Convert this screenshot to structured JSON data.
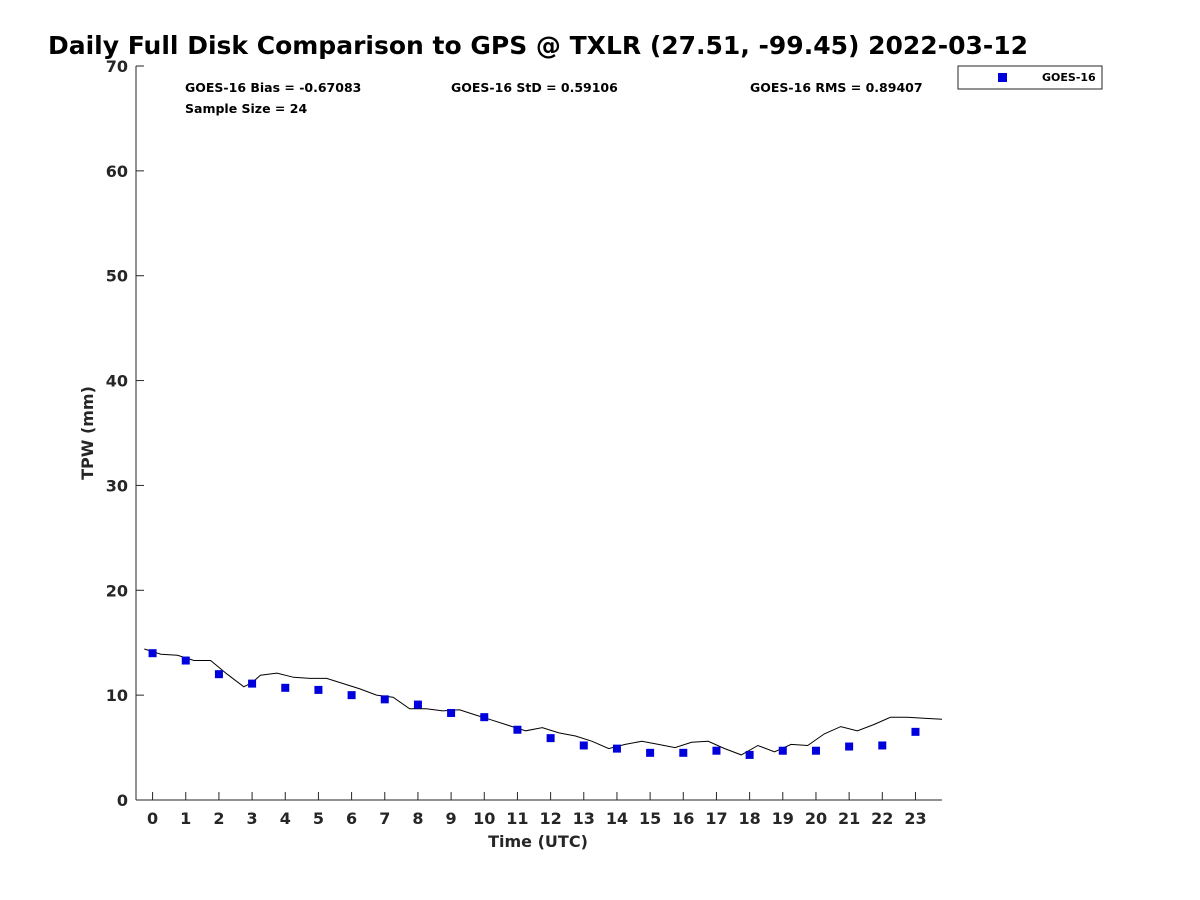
{
  "chart_data": {
    "type": "scatter",
    "title": "Daily Full Disk Comparison to GPS @ TXLR (27.51, -99.45) 2022-03-12",
    "xlabel": "Time (UTC)",
    "ylabel": "TPW (mm)",
    "xlim": [
      -0.5,
      23.8
    ],
    "ylim": [
      0,
      70
    ],
    "xticks": [
      "0",
      "1",
      "2",
      "3",
      "4",
      "5",
      "6",
      "7",
      "8",
      "9",
      "10",
      "11",
      "12",
      "13",
      "14",
      "15",
      "16",
      "17",
      "18",
      "19",
      "20",
      "21",
      "22",
      "23"
    ],
    "yticks": [
      "0",
      "10",
      "20",
      "30",
      "40",
      "50",
      "60",
      "70"
    ],
    "grid": false,
    "legend_position": "top-right (outside plot)",
    "stats": {
      "bias": "GOES-16 Bias = -0.67083",
      "std": "GOES-16 StD = 0.59106",
      "rms": "GOES-16 RMS = 0.89407",
      "sample": "Sample Size = 24"
    },
    "series": [
      {
        "name": "GOES-16",
        "kind": "marker",
        "color": "#0000dd",
        "x": [
          0,
          1,
          2,
          3,
          4,
          5,
          6,
          7,
          8,
          9,
          10,
          11,
          12,
          13,
          14,
          15,
          16,
          17,
          18,
          19,
          20,
          21,
          22,
          23
        ],
        "y": [
          14.0,
          13.3,
          12.0,
          11.1,
          10.7,
          10.5,
          10.0,
          9.6,
          9.1,
          8.3,
          7.9,
          6.7,
          5.9,
          5.2,
          4.9,
          4.5,
          4.5,
          4.7,
          4.3,
          4.7,
          4.7,
          5.1,
          5.2,
          6.5
        ]
      },
      {
        "kind": "line",
        "color": "#000000",
        "x": [
          -0.25,
          0.25,
          0.75,
          1.25,
          1.75,
          2.25,
          2.75,
          3.0,
          3.25,
          3.75,
          4.25,
          4.75,
          5.25,
          5.75,
          6.25,
          6.75,
          7.0,
          7.25,
          7.75,
          8.25,
          8.75,
          9.25,
          9.75,
          10.25,
          10.75,
          11.25,
          11.75,
          12.25,
          12.75,
          13.25,
          13.75,
          14.25,
          14.75,
          15.25,
          15.75,
          16.25,
          16.75,
          17.25,
          17.75,
          18.25,
          18.75,
          19.25,
          19.75,
          20.25,
          20.75,
          21.25,
          21.75,
          22.25,
          22.75,
          23.25,
          23.8
        ],
        "y": [
          14.4,
          13.9,
          13.8,
          13.3,
          13.3,
          12.0,
          10.8,
          11.2,
          11.9,
          12.1,
          11.7,
          11.6,
          11.6,
          11.1,
          10.6,
          10.0,
          9.9,
          9.8,
          8.7,
          8.7,
          8.5,
          8.6,
          8.1,
          7.6,
          7.1,
          6.6,
          6.9,
          6.4,
          6.1,
          5.6,
          4.9,
          5.3,
          5.6,
          5.3,
          5.0,
          5.5,
          5.6,
          4.9,
          4.3,
          5.2,
          4.6,
          5.3,
          5.2,
          6.3,
          7.0,
          6.6,
          7.2,
          7.9,
          7.9,
          7.8,
          7.7
        ]
      }
    ]
  }
}
